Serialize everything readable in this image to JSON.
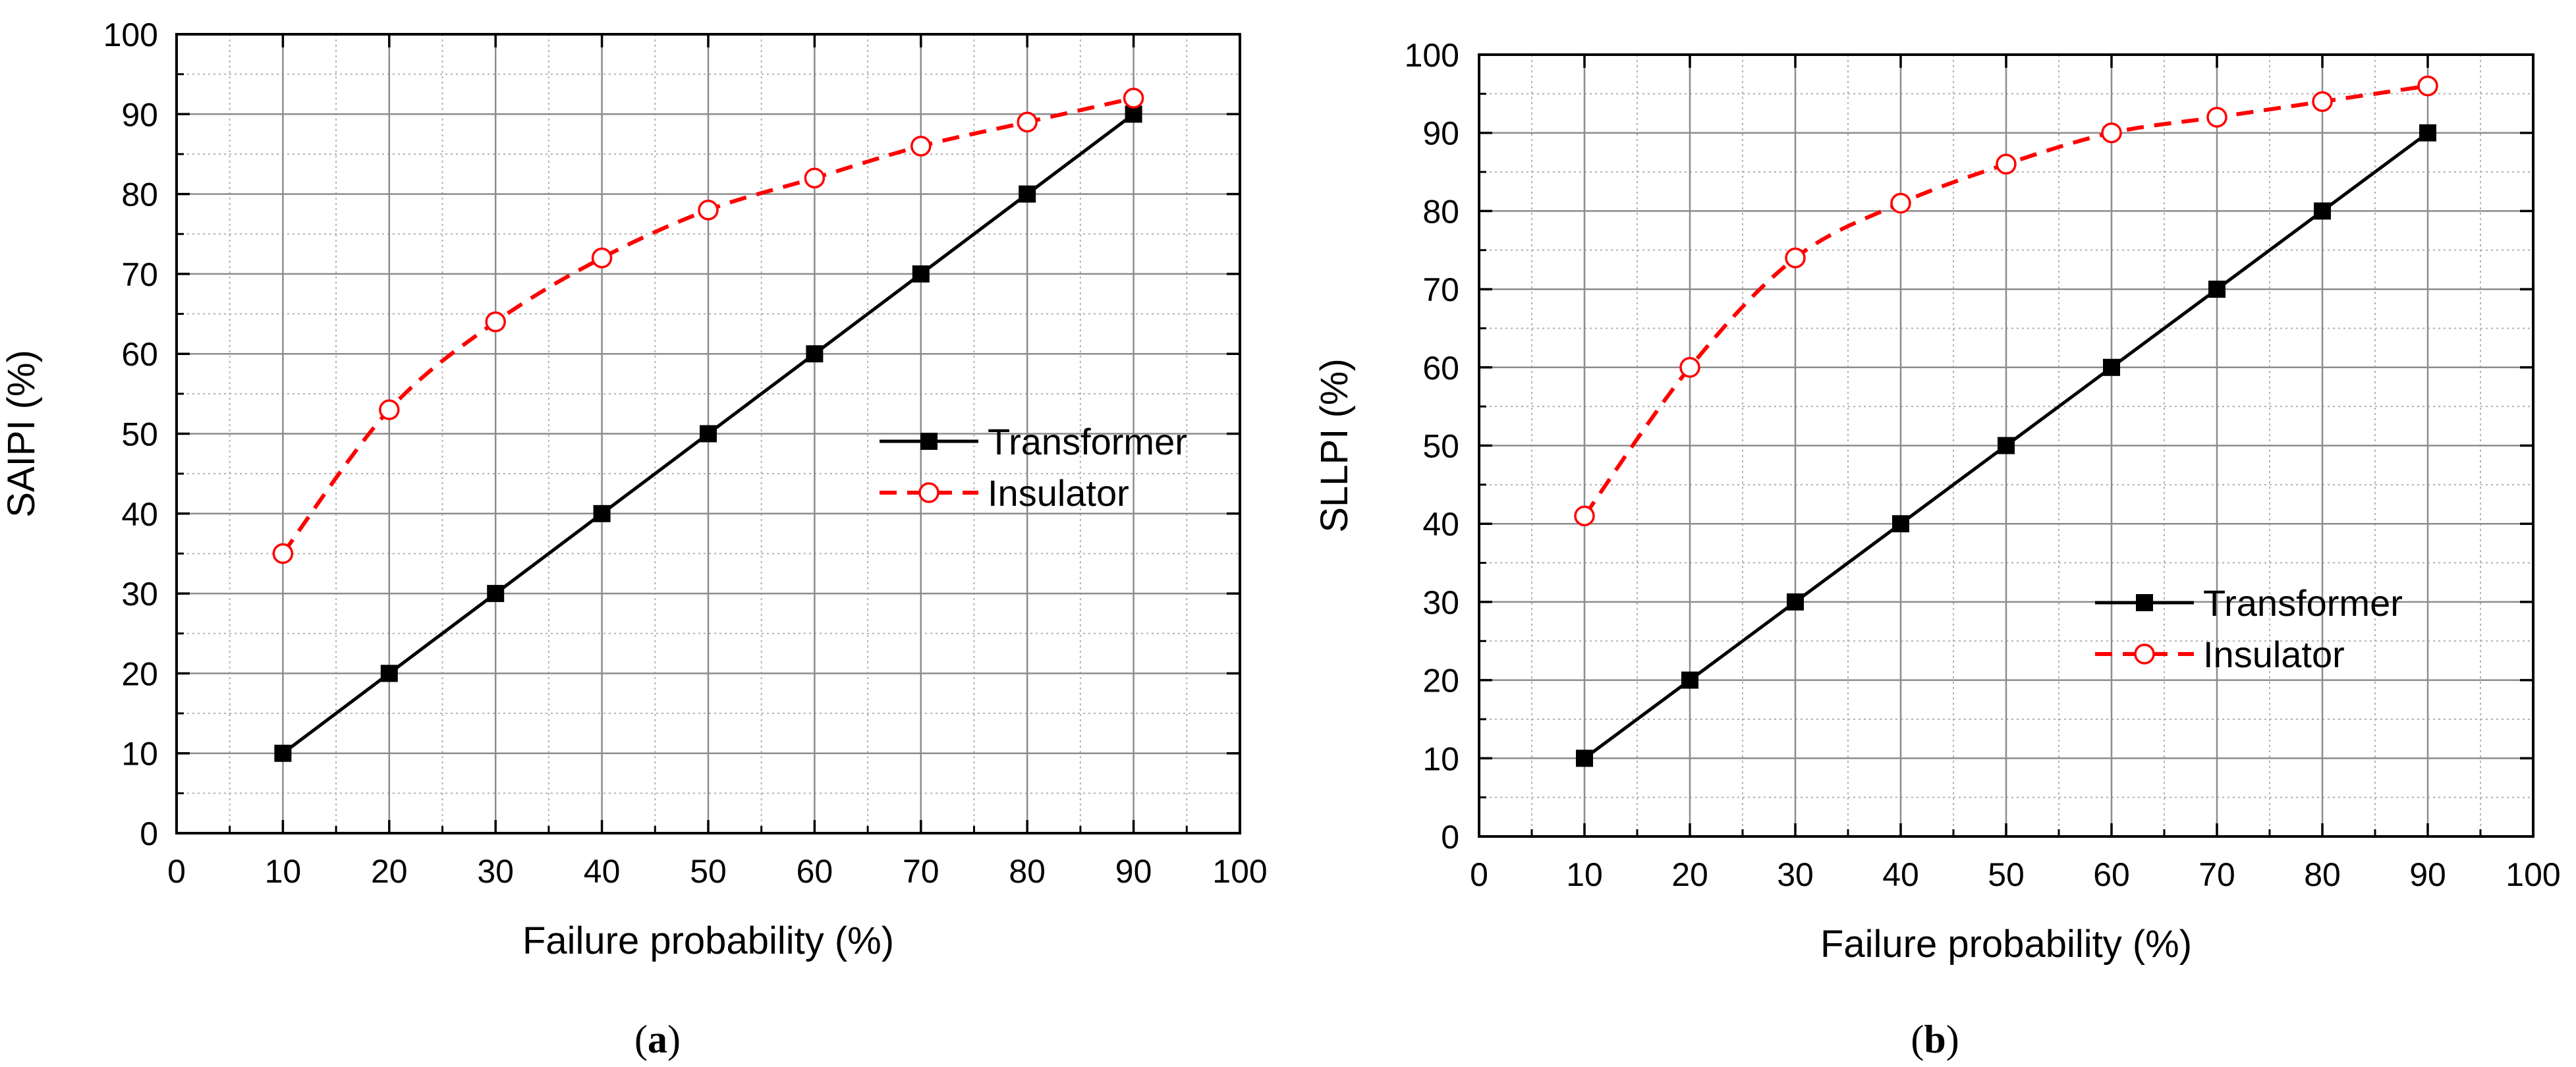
{
  "chart_data": [
    {
      "type": "line",
      "panel": "a",
      "caption_open": "(",
      "caption_letter": "a",
      "caption_close": ")",
      "title": "",
      "xlabel": "Failure probability (%)",
      "ylabel": "SAIPI (%)",
      "xlim": [
        0,
        100
      ],
      "ylim": [
        0,
        100
      ],
      "xticks": [
        0,
        10,
        20,
        30,
        40,
        50,
        60,
        70,
        80,
        90,
        100
      ],
      "yticks": [
        0,
        10,
        20,
        30,
        40,
        50,
        60,
        70,
        80,
        90,
        100
      ],
      "x_tick_labels": [
        "0",
        "10",
        "20",
        "30",
        "40",
        "50",
        "60",
        "70",
        "80",
        "90",
        "100"
      ],
      "y_tick_labels": [
        "0",
        "10",
        "20",
        "30",
        "40",
        "50",
        "60",
        "70",
        "80",
        "90",
        "100"
      ],
      "grid": true,
      "legend_position": "center-right",
      "x": [
        10,
        20,
        30,
        40,
        50,
        60,
        70,
        80,
        90
      ],
      "series": [
        {
          "name": "Transformer",
          "color": "#000000",
          "style": "solid",
          "marker": "filled-square",
          "values": [
            10,
            20,
            30,
            40,
            50,
            60,
            70,
            80,
            90
          ]
        },
        {
          "name": "Insulator",
          "color": "#ff0000",
          "style": "dashed",
          "marker": "open-circle",
          "values": [
            35,
            53,
            64,
            72,
            78,
            82,
            86,
            89,
            92
          ]
        }
      ]
    },
    {
      "type": "line",
      "panel": "b",
      "caption_open": "(",
      "caption_letter": "b",
      "caption_close": ")",
      "title": "",
      "xlabel": "Failure probability (%)",
      "ylabel": "SLLPI (%)",
      "xlim": [
        0,
        100
      ],
      "ylim": [
        0,
        100
      ],
      "xticks": [
        0,
        10,
        20,
        30,
        40,
        50,
        60,
        70,
        80,
        90,
        100
      ],
      "yticks": [
        0,
        10,
        20,
        30,
        40,
        50,
        60,
        70,
        80,
        90,
        100
      ],
      "x_tick_labels": [
        "0",
        "10",
        "20",
        "30",
        "40",
        "50",
        "60",
        "70",
        "80",
        "90",
        "100"
      ],
      "y_tick_labels": [
        "0",
        "10",
        "20",
        "30",
        "40",
        "50",
        "60",
        "70",
        "80",
        "90",
        "100"
      ],
      "grid": true,
      "legend_position": "lower-right",
      "x": [
        10,
        20,
        30,
        40,
        50,
        60,
        70,
        80,
        90
      ],
      "series": [
        {
          "name": "Transformer",
          "color": "#000000",
          "style": "solid",
          "marker": "filled-square",
          "values": [
            10,
            20,
            30,
            40,
            50,
            60,
            70,
            80,
            90
          ]
        },
        {
          "name": "Insulator",
          "color": "#ff0000",
          "style": "dashed",
          "marker": "open-circle",
          "values": [
            41,
            60,
            74,
            81,
            86,
            90,
            92,
            94,
            96
          ]
        }
      ]
    }
  ]
}
